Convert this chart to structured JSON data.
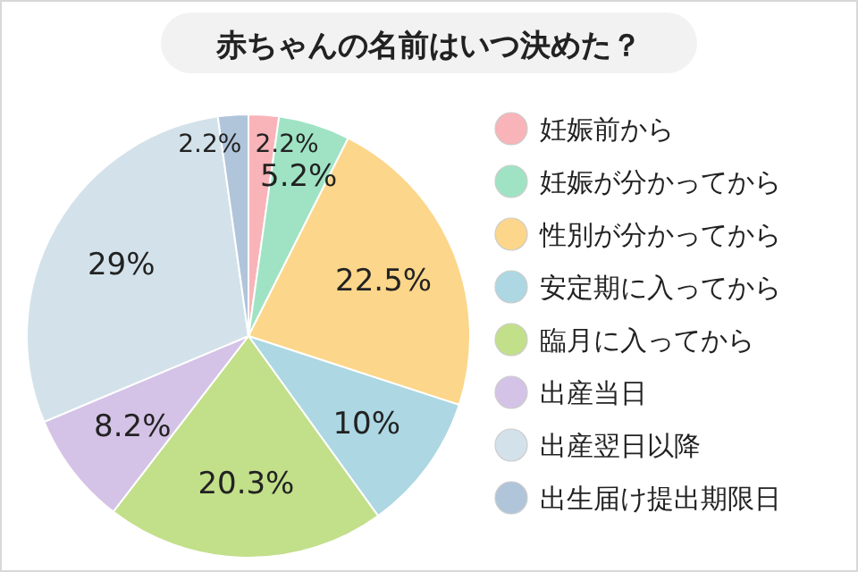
{
  "chart_data": {
    "type": "pie",
    "title": "赤ちゃんの名前はいつ決めた？",
    "categories": [
      "妊娠前から",
      "妊娠が分かってから",
      "性別が分かってから",
      "安定期に入ってから",
      "臨月に入ってから",
      "出産当日",
      "出産翌日以降",
      "出生届け提出期限日"
    ],
    "values": [
      2.2,
      5.2,
      22.5,
      10,
      20.3,
      8.2,
      29,
      2.2
    ],
    "value_labels": [
      "2.2%",
      "5.2%",
      "22.5%",
      "10%",
      "20.3%",
      "8.2%",
      "29%",
      "2.2%"
    ],
    "colors": [
      "#f8b4b8",
      "#9fe3c4",
      "#fcd68a",
      "#acd7e3",
      "#c2df8a",
      "#d4c3e6",
      "#d3e2ea",
      "#b0c4da"
    ],
    "legend": "right"
  }
}
